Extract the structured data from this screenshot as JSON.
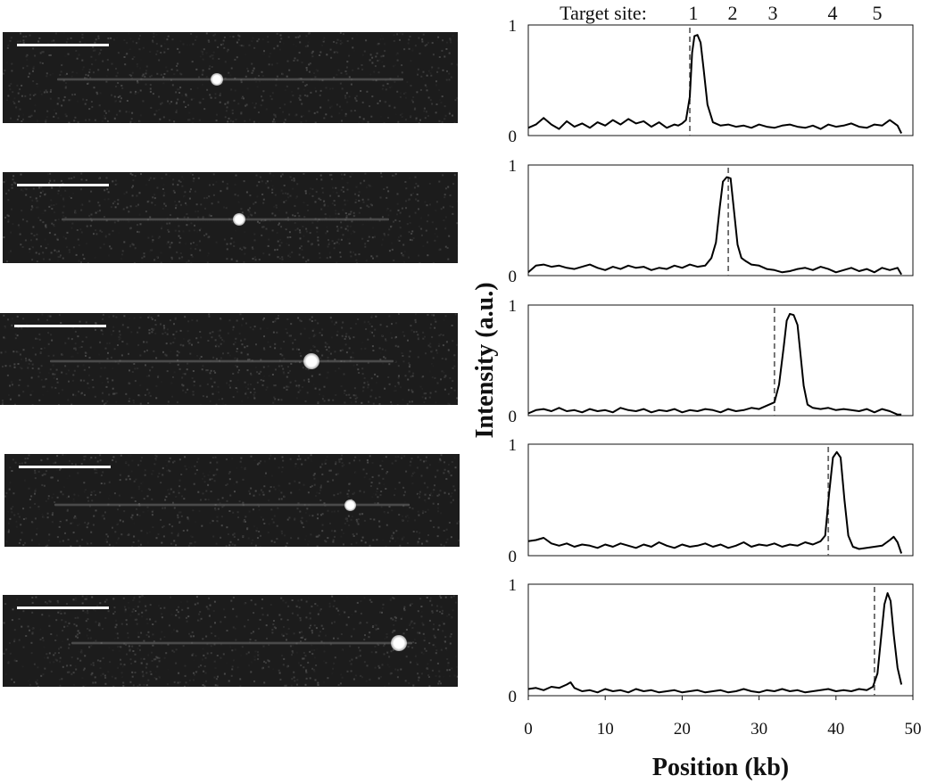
{
  "header": {
    "label": "Target site:",
    "site_numbers": [
      "1",
      "2",
      "3",
      "4",
      "5"
    ]
  },
  "chart_data": {
    "type": "line",
    "xlabel": "Position (kb)",
    "ylabel": "Intensity (a.u.)",
    "xlim": [
      0,
      50
    ],
    "ylim": [
      0,
      1
    ],
    "x_ticks": [
      "0",
      "10",
      "20",
      "30",
      "40",
      "50"
    ],
    "y_ticks": [
      "0",
      "1"
    ],
    "target_site_positions_kb": [
      21,
      26,
      32,
      39,
      45
    ],
    "panels": [
      {
        "target_site": 1,
        "target_kb": 21,
        "peak_kb": 21.8,
        "peak_intensity": 0.91,
        "x": [
          0,
          1,
          2,
          3,
          4,
          5,
          6,
          7,
          8,
          9,
          10,
          11,
          12,
          13,
          14,
          15,
          16,
          17,
          18,
          19,
          19.5,
          20,
          20.5,
          21,
          21.3,
          21.6,
          22,
          22.4,
          22.8,
          23.3,
          24,
          25,
          26,
          27,
          28,
          29,
          30,
          31,
          32,
          33,
          34,
          35,
          36,
          37,
          38,
          39,
          40,
          41,
          42,
          43,
          44,
          45,
          46,
          47,
          48,
          48.5
        ],
        "y": [
          0.07,
          0.1,
          0.16,
          0.1,
          0.06,
          0.13,
          0.08,
          0.11,
          0.07,
          0.12,
          0.09,
          0.14,
          0.1,
          0.15,
          0.11,
          0.13,
          0.08,
          0.12,
          0.07,
          0.1,
          0.09,
          0.11,
          0.14,
          0.35,
          0.75,
          0.9,
          0.91,
          0.84,
          0.6,
          0.28,
          0.12,
          0.09,
          0.1,
          0.08,
          0.09,
          0.07,
          0.1,
          0.08,
          0.07,
          0.09,
          0.1,
          0.08,
          0.07,
          0.09,
          0.06,
          0.1,
          0.08,
          0.09,
          0.11,
          0.08,
          0.07,
          0.1,
          0.09,
          0.14,
          0.09,
          0.02
        ]
      },
      {
        "target_site": 2,
        "target_kb": 26,
        "peak_kb": 25.8,
        "peak_intensity": 0.89,
        "x": [
          0,
          1,
          2,
          3,
          4,
          5,
          6,
          7,
          8,
          9,
          10,
          11,
          12,
          13,
          14,
          15,
          16,
          17,
          18,
          19,
          20,
          21,
          22,
          23,
          23.8,
          24.4,
          24.9,
          25.3,
          25.8,
          26.3,
          26.8,
          27.2,
          27.7,
          28.3,
          29,
          30,
          31,
          32,
          33,
          34,
          35,
          36,
          37,
          38,
          39,
          40,
          41,
          42,
          43,
          44,
          45,
          46,
          47,
          48,
          48.5
        ],
        "y": [
          0.03,
          0.09,
          0.1,
          0.08,
          0.09,
          0.07,
          0.06,
          0.08,
          0.1,
          0.07,
          0.05,
          0.08,
          0.06,
          0.09,
          0.07,
          0.08,
          0.05,
          0.07,
          0.06,
          0.09,
          0.07,
          0.1,
          0.08,
          0.09,
          0.16,
          0.3,
          0.62,
          0.85,
          0.89,
          0.88,
          0.55,
          0.28,
          0.16,
          0.13,
          0.1,
          0.09,
          0.06,
          0.05,
          0.03,
          0.04,
          0.06,
          0.07,
          0.05,
          0.08,
          0.06,
          0.03,
          0.05,
          0.07,
          0.04,
          0.06,
          0.03,
          0.07,
          0.05,
          0.07,
          0.01
        ]
      },
      {
        "target_site": 3,
        "target_kb": 32,
        "peak_kb": 34.5,
        "peak_intensity": 0.92,
        "x": [
          0,
          1,
          2,
          3,
          4,
          5,
          6,
          7,
          8,
          9,
          10,
          11,
          12,
          13,
          14,
          15,
          16,
          17,
          18,
          19,
          20,
          21,
          22,
          23,
          24,
          25,
          26,
          27,
          28,
          29,
          30,
          31,
          32,
          32.6,
          33.2,
          33.6,
          34,
          34.5,
          35,
          35.4,
          35.8,
          36.3,
          37,
          38,
          39,
          40,
          41,
          42,
          43,
          44,
          45,
          46,
          47,
          48,
          48.5
        ],
        "y": [
          0.02,
          0.05,
          0.06,
          0.04,
          0.07,
          0.04,
          0.05,
          0.03,
          0.06,
          0.04,
          0.05,
          0.03,
          0.07,
          0.05,
          0.04,
          0.06,
          0.03,
          0.05,
          0.04,
          0.06,
          0.03,
          0.05,
          0.04,
          0.06,
          0.05,
          0.03,
          0.06,
          0.04,
          0.05,
          0.07,
          0.06,
          0.09,
          0.12,
          0.28,
          0.62,
          0.86,
          0.92,
          0.91,
          0.82,
          0.55,
          0.27,
          0.1,
          0.07,
          0.06,
          0.07,
          0.05,
          0.06,
          0.05,
          0.04,
          0.06,
          0.03,
          0.06,
          0.04,
          0.01,
          0.01
        ]
      },
      {
        "target_site": 4,
        "target_kb": 39,
        "peak_kb": 40.1,
        "peak_intensity": 0.93,
        "x": [
          0,
          1,
          2,
          3,
          4,
          5,
          6,
          7,
          8,
          9,
          10,
          11,
          12,
          13,
          14,
          15,
          16,
          17,
          18,
          19,
          20,
          21,
          22,
          23,
          24,
          25,
          26,
          27,
          28,
          29,
          30,
          31,
          32,
          33,
          34,
          35,
          36,
          37,
          38,
          38.6,
          39.1,
          39.6,
          40.1,
          40.6,
          41.1,
          41.6,
          42.2,
          43,
          44,
          45,
          46,
          47,
          47.5,
          48,
          48.5
        ],
        "y": [
          0.13,
          0.14,
          0.16,
          0.11,
          0.09,
          0.11,
          0.08,
          0.1,
          0.09,
          0.07,
          0.1,
          0.08,
          0.11,
          0.09,
          0.07,
          0.1,
          0.08,
          0.12,
          0.09,
          0.07,
          0.1,
          0.08,
          0.09,
          0.11,
          0.08,
          0.1,
          0.07,
          0.09,
          0.12,
          0.08,
          0.1,
          0.09,
          0.11,
          0.08,
          0.1,
          0.09,
          0.12,
          0.1,
          0.13,
          0.18,
          0.55,
          0.88,
          0.93,
          0.88,
          0.5,
          0.18,
          0.08,
          0.06,
          0.07,
          0.08,
          0.09,
          0.14,
          0.17,
          0.12,
          0.02
        ]
      },
      {
        "target_site": 5,
        "target_kb": 45,
        "peak_kb": 46.6,
        "peak_intensity": 0.92,
        "x": [
          0,
          1,
          2,
          3,
          4,
          5,
          5.5,
          6,
          7,
          8,
          9,
          10,
          11,
          12,
          13,
          14,
          15,
          16,
          17,
          18,
          19,
          20,
          21,
          22,
          23,
          24,
          25,
          26,
          27,
          28,
          29,
          30,
          31,
          32,
          33,
          34,
          35,
          36,
          37,
          38,
          39,
          40,
          41,
          42,
          43,
          44,
          44.8,
          45.4,
          45.9,
          46.3,
          46.7,
          47.1,
          47.5,
          48,
          48.5
        ],
        "y": [
          0.06,
          0.07,
          0.05,
          0.08,
          0.07,
          0.1,
          0.12,
          0.07,
          0.04,
          0.05,
          0.03,
          0.06,
          0.04,
          0.05,
          0.03,
          0.06,
          0.04,
          0.05,
          0.03,
          0.04,
          0.05,
          0.03,
          0.04,
          0.05,
          0.03,
          0.04,
          0.05,
          0.03,
          0.04,
          0.06,
          0.04,
          0.03,
          0.05,
          0.04,
          0.06,
          0.04,
          0.05,
          0.03,
          0.04,
          0.05,
          0.06,
          0.04,
          0.05,
          0.04,
          0.06,
          0.05,
          0.08,
          0.2,
          0.55,
          0.82,
          0.92,
          0.85,
          0.55,
          0.25,
          0.1
        ]
      }
    ]
  },
  "images": [
    {
      "spot_fraction": 0.47
    },
    {
      "spot_fraction": 0.52
    },
    {
      "spot_fraction": 0.68
    },
    {
      "spot_fraction": 0.76
    },
    {
      "spot_fraction": 0.87
    }
  ]
}
